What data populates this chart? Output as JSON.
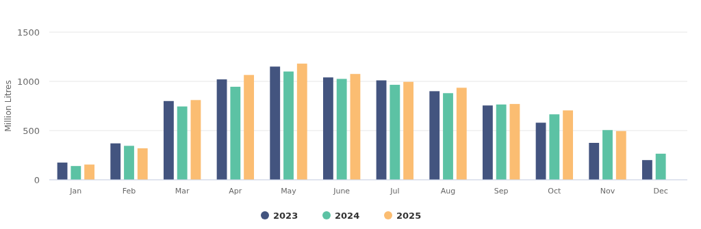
{
  "chart_data": {
    "type": "bar",
    "ylabel": "Million Litres",
    "categories": [
      "Jan",
      "Feb",
      "Mar",
      "Apr",
      "May",
      "June",
      "Jul",
      "Aug",
      "Sep",
      "Oct",
      "Nov",
      "Dec"
    ],
    "series": [
      {
        "name": "2023",
        "color": "#43547f",
        "values": [
          175,
          370,
          800,
          1020,
          1150,
          1040,
          1010,
          900,
          755,
          580,
          375,
          200
        ]
      },
      {
        "name": "2024",
        "color": "#5cc2a4",
        "values": [
          140,
          345,
          745,
          945,
          1100,
          1025,
          965,
          880,
          765,
          665,
          505,
          265
        ]
      },
      {
        "name": "2025",
        "color": "#fbbd72",
        "values": [
          155,
          320,
          810,
          1065,
          1180,
          1075,
          995,
          935,
          770,
          705,
          495,
          null
        ]
      }
    ],
    "ylim": [
      0,
      1500
    ],
    "yticks": [
      0,
      500,
      1000,
      1500
    ],
    "grid": "y",
    "legend": "bottom"
  }
}
